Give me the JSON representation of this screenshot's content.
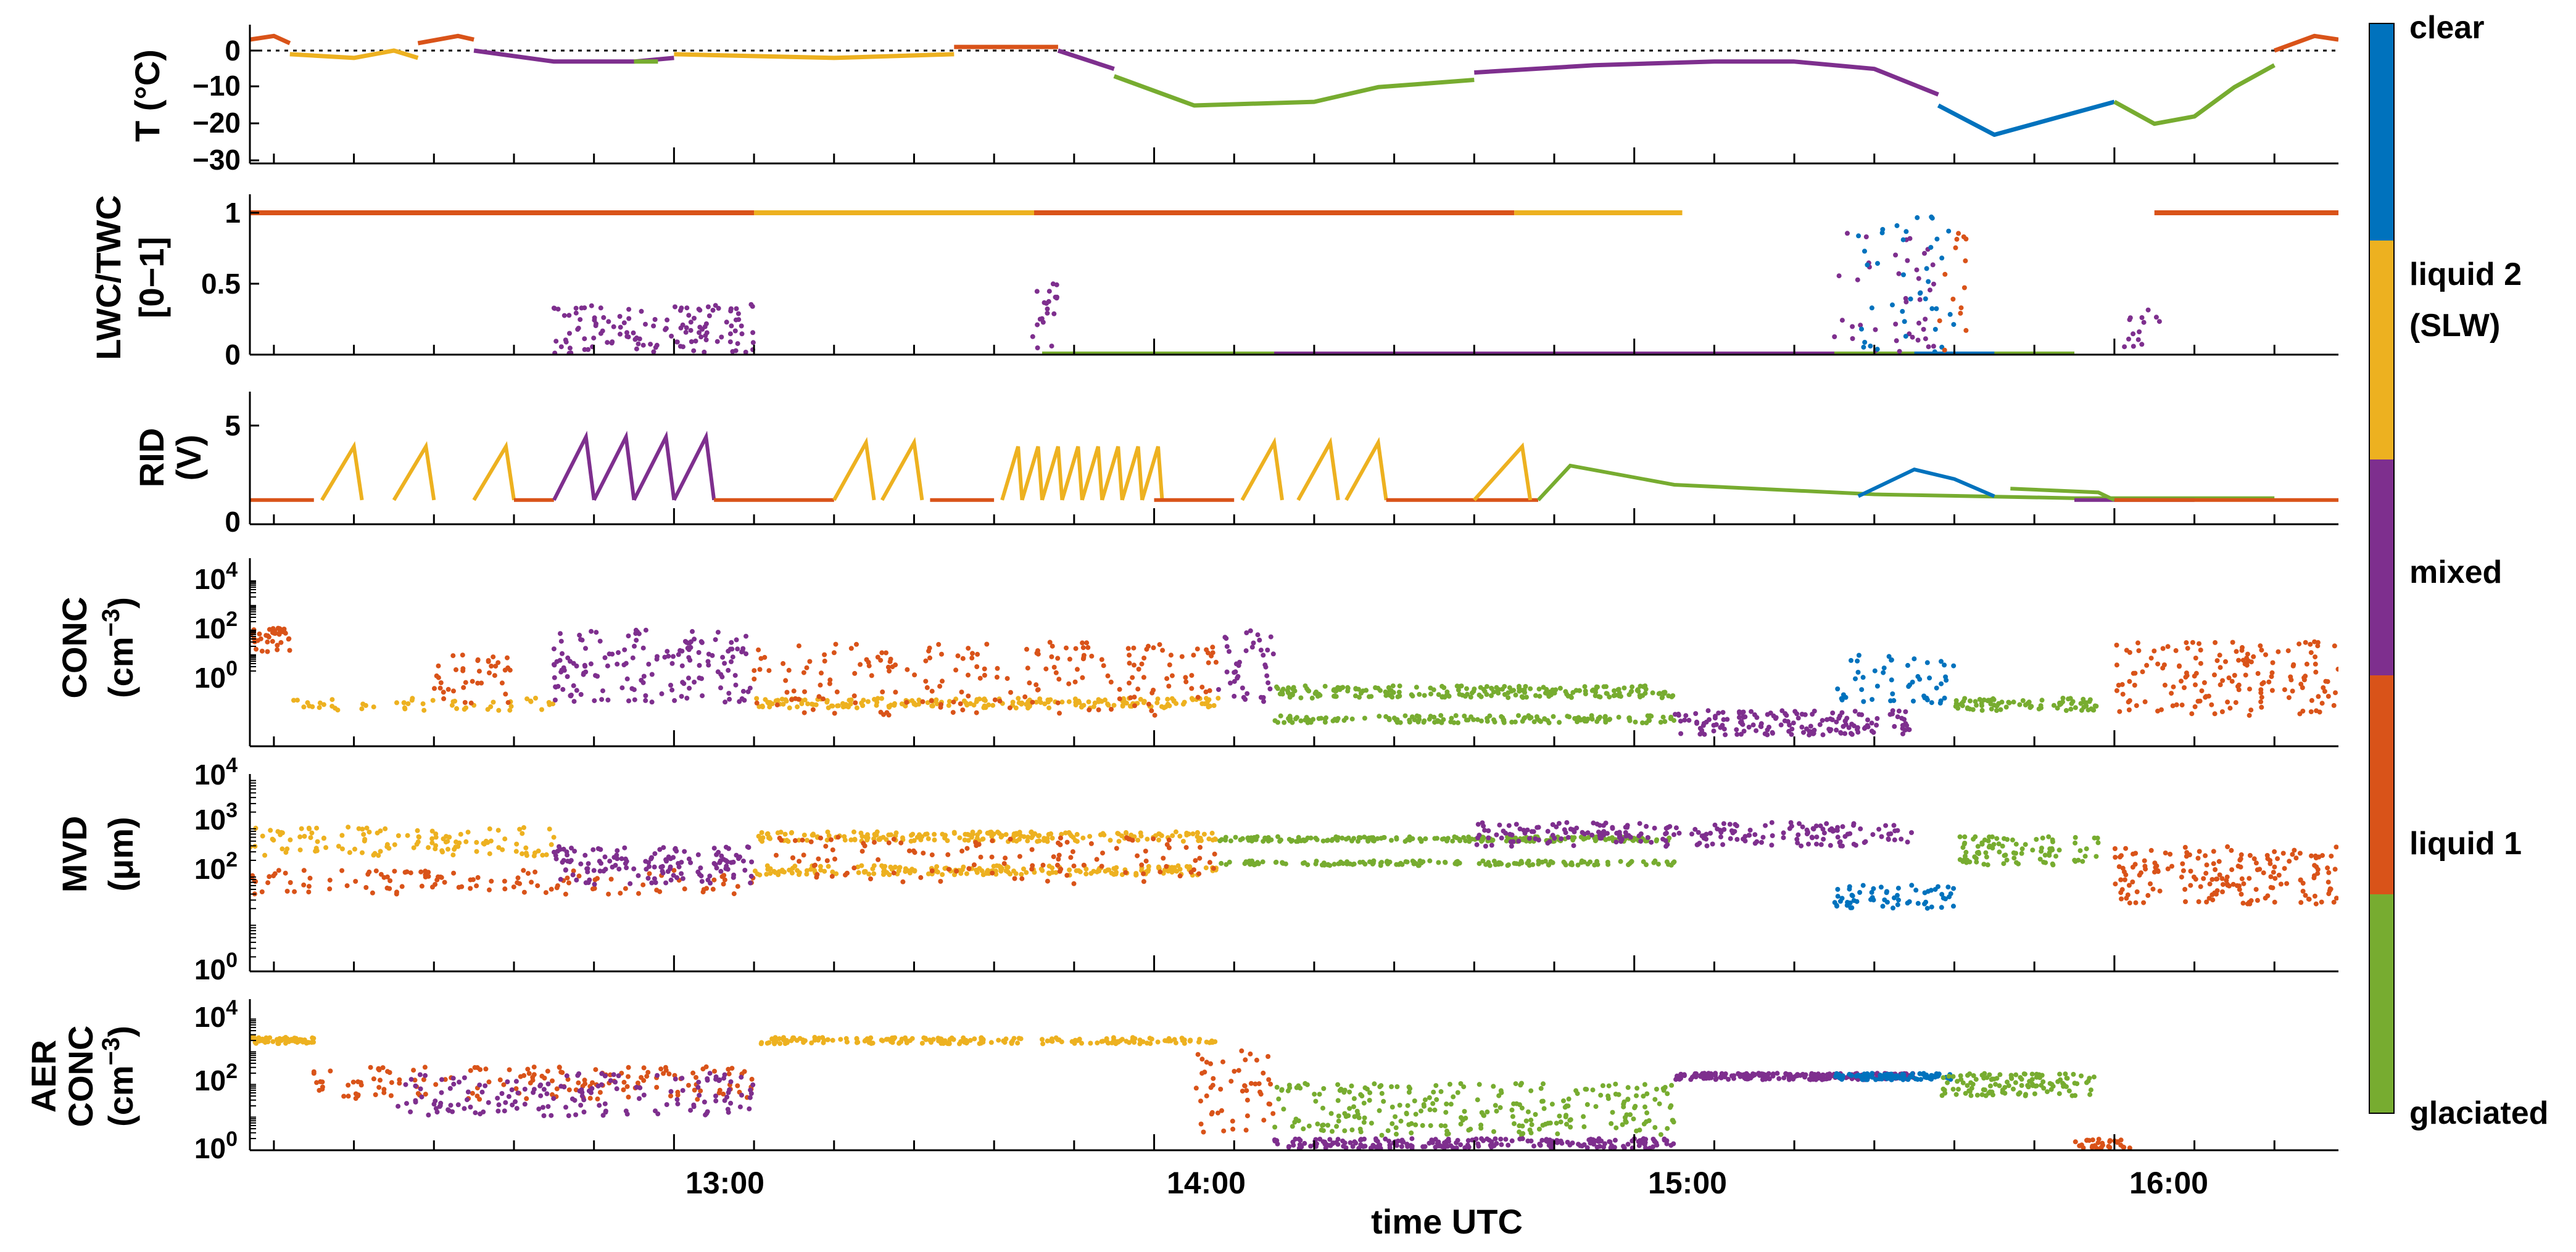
{
  "figure": {
    "xlabel": "time UTC",
    "xticks": [
      "13:00",
      "14:00",
      "15:00",
      "16:00"
    ]
  },
  "legend": {
    "labels": [
      "clear",
      "liquid 2",
      "(SLW)",
      "mixed",
      "liquid 1",
      "glaciated"
    ],
    "colors": {
      "clear": "#0072BD",
      "liquid2": "#EDB120",
      "mixed": "#7E2F8E",
      "liquid1": "#D95319",
      "glaciated": "#77AC30"
    }
  },
  "chart_data": [
    {
      "type": "scatter",
      "ylabel": "T (°C)",
      "yticks": [
        "0",
        "−10",
        "−20",
        "−30"
      ],
      "ylim": [
        -30,
        7
      ],
      "zero_line": "dotted",
      "xlim": [
        "12:07",
        "16:28"
      ],
      "segments": [
        {
          "class": "liquid1",
          "points": [
            [
              "12:07",
              3
            ],
            [
              "12:10",
              4
            ],
            [
              "12:12",
              2
            ]
          ]
        },
        {
          "class": "liquid2",
          "points": [
            [
              "12:12",
              -1
            ],
            [
              "12:20",
              -2
            ],
            [
              "12:25",
              0
            ],
            [
              "12:28",
              -2
            ]
          ]
        },
        {
          "class": "liquid1",
          "points": [
            [
              "12:28",
              2
            ],
            [
              "12:33",
              4
            ],
            [
              "12:35",
              3
            ]
          ]
        },
        {
          "class": "mixed",
          "points": [
            [
              "12:35",
              0
            ],
            [
              "12:45",
              -3
            ],
            [
              "12:55",
              -3
            ],
            [
              "13:00",
              -2
            ]
          ]
        },
        {
          "class": "glaciated",
          "points": [
            [
              "12:55",
              -3
            ],
            [
              "12:58",
              -3
            ]
          ]
        },
        {
          "class": "liquid2",
          "points": [
            [
              "13:00",
              -1
            ],
            [
              "13:20",
              -2
            ],
            [
              "13:35",
              -1
            ]
          ]
        },
        {
          "class": "liquid1",
          "points": [
            [
              "13:35",
              1
            ],
            [
              "13:48",
              1
            ]
          ]
        },
        {
          "class": "mixed",
          "points": [
            [
              "13:48",
              0
            ],
            [
              "13:55",
              -5
            ]
          ]
        },
        {
          "class": "glaciated",
          "points": [
            [
              "13:55",
              -7
            ],
            [
              "14:05",
              -15
            ],
            [
              "14:20",
              -14
            ],
            [
              "14:28",
              -10
            ],
            [
              "14:40",
              -8
            ]
          ]
        },
        {
          "class": "mixed",
          "points": [
            [
              "14:40",
              -6
            ],
            [
              "14:55",
              -4
            ],
            [
              "15:10",
              -3
            ],
            [
              "15:20",
              -3
            ],
            [
              "15:30",
              -5
            ],
            [
              "15:38",
              -12
            ]
          ]
        },
        {
          "class": "clear",
          "points": [
            [
              "15:38",
              -15
            ],
            [
              "15:45",
              -23
            ],
            [
              "15:55",
              -17
            ],
            [
              "16:00",
              -14
            ]
          ]
        },
        {
          "class": "glaciated",
          "points": [
            [
              "16:00",
              -14
            ],
            [
              "16:05",
              -20
            ],
            [
              "16:10",
              -18
            ],
            [
              "16:15",
              -10
            ],
            [
              "16:20",
              -4
            ]
          ]
        },
        {
          "class": "liquid1",
          "points": [
            [
              "16:20",
              0
            ],
            [
              "16:25",
              4
            ],
            [
              "16:28",
              3
            ]
          ]
        }
      ]
    },
    {
      "type": "scatter",
      "ylabel": "LWC/TWC",
      "ylabel2": "[0−1]",
      "yticks": [
        "0",
        "0.5",
        "1"
      ],
      "ylim": [
        0,
        1.1
      ],
      "xlim": [
        "12:07",
        "16:28"
      ]
    },
    {
      "type": "scatter",
      "ylabel": "RID",
      "ylabel2": "(V)",
      "yticks": [
        "0",
        "5"
      ],
      "ylim": [
        0,
        6
      ],
      "xlim": [
        "12:07",
        "16:28"
      ]
    },
    {
      "type": "scatter",
      "ylabel": "CONC",
      "ylabel2": "(cm",
      "ylabel2_sup": "−3",
      "ylabel2_end": ")",
      "yticks": [
        "10",
        "10",
        "10"
      ],
      "ytick_exponents": [
        "4",
        "2",
        "0"
      ],
      "scale": "log",
      "xlim": [
        "12:07",
        "16:28"
      ]
    },
    {
      "type": "scatter",
      "ylabel": "MVD",
      "ylabel2": "(μm)",
      "yticks": [
        "10",
        "10",
        "10",
        "10"
      ],
      "ytick_exponents": [
        "4",
        "3",
        "2",
        "0"
      ],
      "scale": "log",
      "xlim": [
        "12:07",
        "16:28"
      ]
    },
    {
      "type": "scatter",
      "ylabel": "AER",
      "ylabel1": "CONC",
      "ylabel2": "(cm",
      "ylabel2_sup": "−3",
      "ylabel2_end": ")",
      "yticks": [
        "10",
        "10",
        "10"
      ],
      "ytick_exponents": [
        "4",
        "2",
        "0"
      ],
      "scale": "log",
      "xlim": [
        "12:07",
        "16:28"
      ]
    }
  ]
}
